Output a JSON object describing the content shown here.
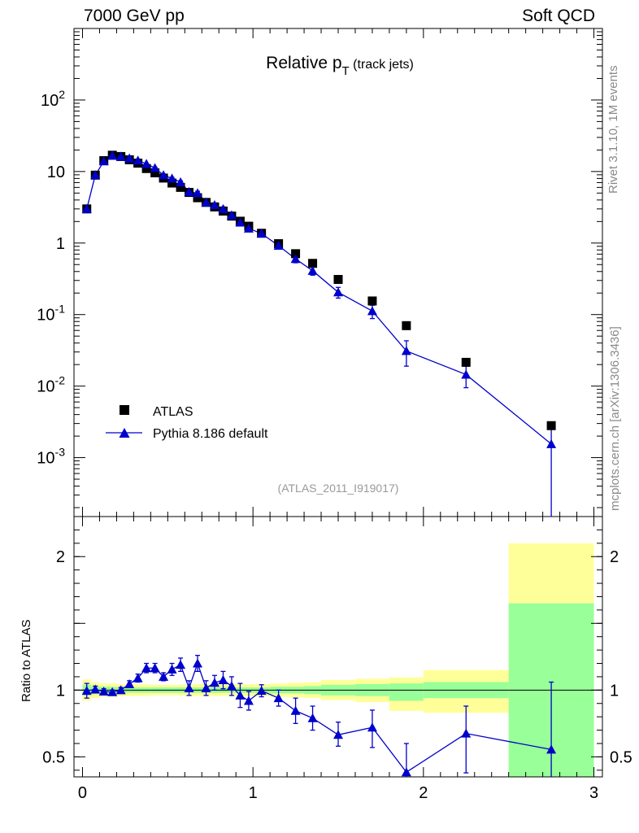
{
  "header": {
    "left": "7000 GeV pp",
    "right": "Soft QCD"
  },
  "side": {
    "rivet": "Rivet 3.1.10,  1M events",
    "mcplots": "mcplots.cern.ch [arXiv:1306.3436]"
  },
  "colors": {
    "mc": "#0000cc",
    "data": "#000000",
    "band_inner": "#99ff99",
    "band_outer": "#ffff99"
  },
  "chart_data": [
    {
      "type": "scatter",
      "title": "Relative p",
      "title_sub": "T",
      "title_suffix": "(track jets)",
      "watermark": "(ATLAS_2011_I919017)",
      "ylog": true,
      "xlim": [
        -0.05,
        3.05
      ],
      "ylim": [
        0.00015,
        1000
      ],
      "yticks": [
        {
          "v": 0.001,
          "base": "10",
          "exp": "-3"
        },
        {
          "v": 0.01,
          "base": "10",
          "exp": "-2"
        },
        {
          "v": 0.1,
          "base": "10",
          "exp": "-1"
        },
        {
          "v": 1,
          "base": "1",
          "exp": ""
        },
        {
          "v": 10,
          "base": "10",
          "exp": ""
        },
        {
          "v": 100,
          "base": "10",
          "exp": "2"
        }
      ],
      "legend": [
        {
          "label": "ATLAS",
          "marker": "square"
        },
        {
          "label": "Pythia 8.186 default",
          "marker": "triangle"
        }
      ],
      "series": [
        {
          "name": "ATLAS",
          "x": [
            0.025,
            0.075,
            0.125,
            0.175,
            0.225,
            0.275,
            0.325,
            0.375,
            0.425,
            0.475,
            0.525,
            0.575,
            0.625,
            0.675,
            0.725,
            0.775,
            0.825,
            0.875,
            0.925,
            0.975,
            1.05,
            1.15,
            1.25,
            1.35,
            1.5,
            1.7,
            1.9,
            2.25,
            2.75
          ],
          "y": [
            3.0,
            8.9,
            14.2,
            16.9,
            16.2,
            14.6,
            13.1,
            11.0,
            9.6,
            8.1,
            6.9,
            6.0,
            5.1,
            4.3,
            3.7,
            3.2,
            2.8,
            2.38,
            2.02,
            1.72,
            1.37,
            0.98,
            0.71,
            0.52,
            0.31,
            0.155,
            0.07,
            0.0215,
            0.0028
          ]
        },
        {
          "name": "Pythia 8.186 default",
          "x": [
            0.025,
            0.075,
            0.125,
            0.175,
            0.225,
            0.275,
            0.325,
            0.375,
            0.425,
            0.475,
            0.525,
            0.575,
            0.625,
            0.675,
            0.725,
            0.775,
            0.825,
            0.875,
            0.925,
            0.975,
            1.05,
            1.15,
            1.25,
            1.35,
            1.5,
            1.7,
            1.9,
            2.25,
            2.75
          ],
          "y": [
            3.0,
            8.9,
            13.9,
            16.7,
            16.2,
            15.3,
            14.3,
            12.8,
            11.2,
            8.9,
            8.0,
            7.1,
            5.2,
            5.0,
            3.7,
            3.4,
            3.0,
            2.45,
            1.94,
            1.6,
            1.36,
            0.92,
            0.6,
            0.41,
            0.205,
            0.112,
            0.031,
            0.0145,
            0.00155
          ],
          "ylo": [
            2.9,
            8.7,
            13.6,
            16.4,
            15.9,
            15.0,
            14.0,
            12.5,
            10.9,
            8.6,
            7.7,
            6.8,
            4.9,
            4.7,
            3.5,
            3.2,
            2.8,
            2.25,
            1.78,
            1.45,
            1.27,
            0.84,
            0.53,
            0.355,
            0.17,
            0.088,
            0.019,
            0.0095,
            1e-05
          ],
          "yhi": [
            3.1,
            9.1,
            14.2,
            17.0,
            16.5,
            15.6,
            14.6,
            13.1,
            11.5,
            9.2,
            8.3,
            7.4,
            5.5,
            5.3,
            3.9,
            3.6,
            3.2,
            2.65,
            2.1,
            1.75,
            1.45,
            1.0,
            0.67,
            0.465,
            0.24,
            0.135,
            0.043,
            0.019,
            0.003
          ]
        }
      ]
    },
    {
      "type": "scatter",
      "ylabel": "Ratio to ATLAS",
      "xlim": [
        -0.05,
        3.05
      ],
      "ylim": [
        0.35,
        2.3
      ],
      "xticks": [
        0,
        1,
        2,
        3
      ],
      "yticks": [
        0.5,
        1,
        2
      ],
      "band": [
        {
          "x0": 0.0,
          "x1": 0.05,
          "in_lo": 0.96,
          "in_hi": 1.04,
          "out_lo": 0.92,
          "out_hi": 1.08
        },
        {
          "x0": 0.05,
          "x1": 0.1,
          "in_lo": 0.97,
          "in_hi": 1.03,
          "out_lo": 0.94,
          "out_hi": 1.06
        },
        {
          "x0": 0.1,
          "x1": 0.2,
          "in_lo": 0.975,
          "in_hi": 1.025,
          "out_lo": 0.95,
          "out_hi": 1.05
        },
        {
          "x0": 0.2,
          "x1": 0.4,
          "in_lo": 0.98,
          "in_hi": 1.02,
          "out_lo": 0.955,
          "out_hi": 1.045
        },
        {
          "x0": 0.4,
          "x1": 0.6,
          "in_lo": 0.98,
          "in_hi": 1.02,
          "out_lo": 0.96,
          "out_hi": 1.04
        },
        {
          "x0": 0.6,
          "x1": 0.9,
          "in_lo": 0.98,
          "in_hi": 1.02,
          "out_lo": 0.955,
          "out_hi": 1.045
        },
        {
          "x0": 0.9,
          "x1": 1.1,
          "in_lo": 0.98,
          "in_hi": 1.02,
          "out_lo": 0.955,
          "out_hi": 1.045
        },
        {
          "x0": 1.1,
          "x1": 1.2,
          "in_lo": 0.975,
          "in_hi": 1.025,
          "out_lo": 0.95,
          "out_hi": 1.05
        },
        {
          "x0": 1.2,
          "x1": 1.3,
          "in_lo": 0.975,
          "in_hi": 1.025,
          "out_lo": 0.945,
          "out_hi": 1.055
        },
        {
          "x0": 1.3,
          "x1": 1.4,
          "in_lo": 0.97,
          "in_hi": 1.03,
          "out_lo": 0.94,
          "out_hi": 1.06
        },
        {
          "x0": 1.4,
          "x1": 1.6,
          "in_lo": 0.96,
          "in_hi": 1.04,
          "out_lo": 0.925,
          "out_hi": 1.075
        },
        {
          "x0": 1.6,
          "x1": 1.8,
          "in_lo": 0.955,
          "in_hi": 1.045,
          "out_lo": 0.91,
          "out_hi": 1.085
        },
        {
          "x0": 1.8,
          "x1": 2.0,
          "in_lo": 0.92,
          "in_hi": 1.05,
          "out_lo": 0.845,
          "out_hi": 1.095
        },
        {
          "x0": 2.0,
          "x1": 2.5,
          "in_lo": 0.94,
          "in_hi": 1.06,
          "out_lo": 0.83,
          "out_hi": 1.15
        },
        {
          "x0": 2.5,
          "x1": 3.0,
          "in_lo": 0.35,
          "in_hi": 1.65,
          "out_lo": 0.35,
          "out_hi": 2.1
        }
      ],
      "series": [
        {
          "name": "Pythia 8.186 default",
          "x": [
            0.025,
            0.075,
            0.125,
            0.175,
            0.225,
            0.275,
            0.325,
            0.375,
            0.425,
            0.475,
            0.525,
            0.575,
            0.625,
            0.675,
            0.725,
            0.775,
            0.825,
            0.875,
            0.925,
            0.975,
            1.05,
            1.15,
            1.25,
            1.35,
            1.5,
            1.7,
            1.9,
            2.25,
            2.75
          ],
          "y": [
            0.995,
            1.005,
            0.99,
            0.985,
            1.0,
            1.045,
            1.09,
            1.165,
            1.165,
            1.1,
            1.155,
            1.19,
            1.015,
            1.2,
            1.015,
            1.055,
            1.075,
            1.03,
            0.96,
            0.92,
            0.995,
            0.94,
            0.845,
            0.79,
            0.665,
            0.72,
            0.385,
            0.675,
            0.555
          ],
          "ylo": [
            0.94,
            0.98,
            0.97,
            0.97,
            0.98,
            1.02,
            1.06,
            1.13,
            1.13,
            1.07,
            1.11,
            1.14,
            0.96,
            1.14,
            0.96,
            1.0,
            1.01,
            0.96,
            0.87,
            0.85,
            0.95,
            0.88,
            0.75,
            0.7,
            0.58,
            0.57,
            0.19,
            0.38,
            0.35
          ],
          "yhi": [
            1.05,
            1.03,
            1.01,
            1.0,
            1.02,
            1.07,
            1.12,
            1.2,
            1.2,
            1.13,
            1.2,
            1.24,
            1.07,
            1.26,
            1.07,
            1.11,
            1.14,
            1.1,
            1.05,
            0.99,
            1.04,
            1.0,
            0.94,
            0.88,
            0.76,
            0.85,
            0.6,
            0.88,
            1.06
          ]
        }
      ]
    }
  ]
}
